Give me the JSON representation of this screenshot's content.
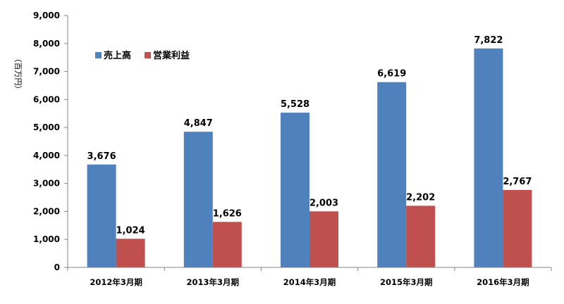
{
  "chart_data": {
    "type": "bar",
    "categories": [
      "2012年3月期",
      "2013年3月期",
      "2014年3月期",
      "2015年3月期",
      "2016年3月期"
    ],
    "series": [
      {
        "name": "売上高",
        "values": [
          3676,
          4847,
          5528,
          6619,
          7822
        ],
        "labels": [
          "3,676",
          "4,847",
          "5,528",
          "6,619",
          "7,822"
        ],
        "color": "#4f81bd"
      },
      {
        "name": "営業利益",
        "values": [
          1024,
          1626,
          2003,
          2202,
          2767
        ],
        "labels": [
          "1,024",
          "1,626",
          "2,003",
          "2,202",
          "2,767"
        ],
        "color": "#c0504d"
      }
    ],
    "yticks": [
      0,
      1000,
      2000,
      3000,
      4000,
      5000,
      6000,
      7000,
      8000,
      9000
    ],
    "ytick_labels": [
      "0",
      "1,000",
      "2,000",
      "3,000",
      "4,000",
      "5,000",
      "6,000",
      "7,000",
      "8,000",
      "9,000"
    ],
    "ylim": [
      0,
      9000
    ],
    "ylabel": "（百万円）",
    "xlabel": "",
    "title": "",
    "grid": false,
    "legend_position": "top-left",
    "axis_color": "#868686"
  }
}
